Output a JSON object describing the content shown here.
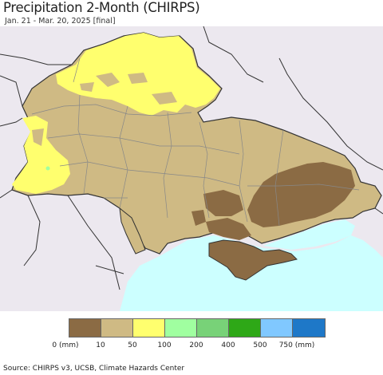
{
  "title": "Precipitation 2-Month (CHIRPS)",
  "subtitle": "Jan. 21 - Mar. 20, 2025 [final]",
  "colors": {
    "background_land": "#ece8ef",
    "sea": "#ccffff",
    "outside_border": "#333333"
  },
  "legend": {
    "colors": [
      "#8b6b44",
      "#cfba84",
      "#ffff6e",
      "#a0ffa0",
      "#78d278",
      "#2ea817",
      "#80c8ff",
      "#1e78c8"
    ],
    "ticks": [
      "0 (mm)",
      "10",
      "50",
      "100",
      "200",
      "400",
      "500",
      "750 (mm)"
    ]
  },
  "source": "Source: CHIRPS v3, UCSB, Climate Hazards Center"
}
